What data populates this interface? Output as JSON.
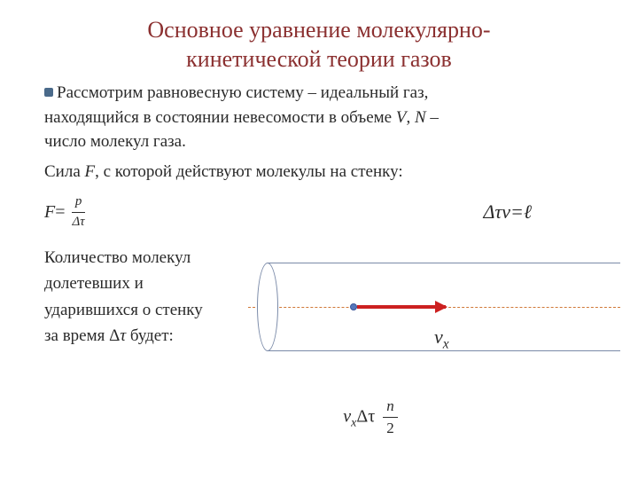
{
  "title_line1": "Основное уравнение молекулярно-",
  "title_line2": "кинетической теории газов",
  "para1_a": "Рассмотрим равновесную систему – идеальный газ,",
  "para1_b": "находящийся в состоянии невесомости в объеме ",
  "sym_V": "V",
  "sep1": ", ",
  "sym_N": "N",
  "para1_c": " –",
  "para1_d": "число молекул газа.",
  "force_a": "Сила ",
  "sym_F": "F",
  "force_b": ", с которой действуют молекулы на стенку:",
  "eq_F": "F",
  "eq_eq": " = ",
  "eq_p": "p",
  "eq_dtau": "Δτ",
  "eq_right": "Δτv=ℓ",
  "left_l1": "Количество молекул",
  "left_l2": "долетевших и",
  "left_l3": "ударившихся о стенку",
  "left_l4a": "за время Δ",
  "left_l4b": "τ",
  "left_l4c": " будет:",
  "vx_v": "v",
  "vx_x": "x",
  "fe_vx": "v",
  "fe_x": "x",
  "fe_dtau": "Δτ",
  "fe_n": "n",
  "fe_2": "2",
  "colors": {
    "title": "#8b3030",
    "text": "#2a2a2a",
    "cylinder_border": "#7a8aa8",
    "axis": "#d07838",
    "arrow": "#cc2020",
    "molecule": "#5577bb"
  }
}
